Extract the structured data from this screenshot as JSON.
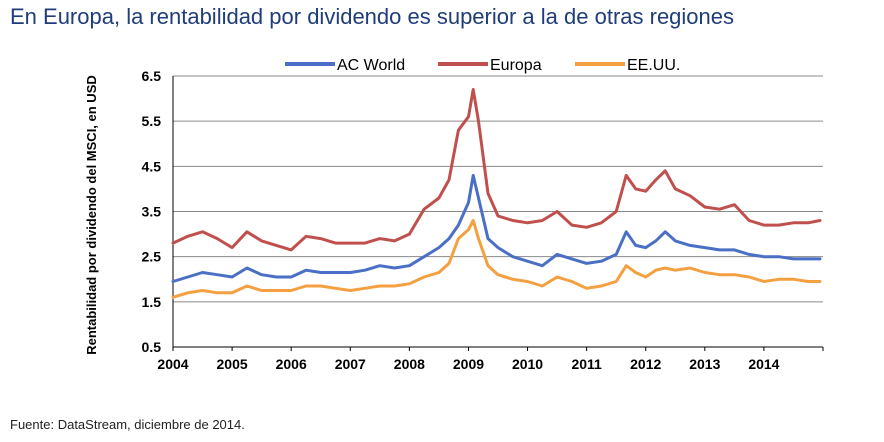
{
  "title": "En Europa, la rentabilidad por dividendo es superior a la de otras regiones",
  "source": "Fuente: DataStream, diciembre de 2014.",
  "chart_data": {
    "type": "line",
    "title": "En Europa, la rentabilidad por dividendo es superior a la de otras regiones",
    "xlabel": "",
    "ylabel": "Rentabilidad por dividendo del MSCI, en USD",
    "ylim": [
      0.5,
      6.5
    ],
    "xlim": [
      2004,
      2015
    ],
    "yticks": [
      "0.5",
      "1.5",
      "2.5",
      "3.5",
      "4.5",
      "5.5",
      "6.5"
    ],
    "xticks": [
      "2004",
      "2005",
      "2006",
      "2007",
      "2008",
      "2009",
      "2010",
      "2011",
      "2012",
      "2013",
      "2014"
    ],
    "grid": "horizontal",
    "legend": "top",
    "x": [
      2004.0,
      2004.25,
      2004.5,
      2004.75,
      2005.0,
      2005.25,
      2005.5,
      2005.75,
      2006.0,
      2006.25,
      2006.5,
      2006.75,
      2007.0,
      2007.25,
      2007.5,
      2007.75,
      2008.0,
      2008.25,
      2008.5,
      2008.67,
      2008.83,
      2009.0,
      2009.08,
      2009.17,
      2009.33,
      2009.5,
      2009.75,
      2010.0,
      2010.25,
      2010.5,
      2010.75,
      2011.0,
      2011.25,
      2011.5,
      2011.67,
      2011.83,
      2012.0,
      2012.17,
      2012.33,
      2012.5,
      2012.75,
      2013.0,
      2013.25,
      2013.5,
      2013.75,
      2014.0,
      2014.25,
      2014.5,
      2014.75,
      2014.95
    ],
    "series": [
      {
        "name": "AC World",
        "color": "#4a6fc4",
        "values": [
          1.95,
          2.05,
          2.15,
          2.1,
          2.05,
          2.25,
          2.1,
          2.05,
          2.05,
          2.2,
          2.15,
          2.15,
          2.15,
          2.2,
          2.3,
          2.25,
          2.3,
          2.5,
          2.7,
          2.9,
          3.2,
          3.7,
          4.3,
          3.8,
          2.9,
          2.7,
          2.5,
          2.4,
          2.3,
          2.55,
          2.45,
          2.35,
          2.4,
          2.55,
          3.05,
          2.75,
          2.7,
          2.85,
          3.05,
          2.85,
          2.75,
          2.7,
          2.65,
          2.65,
          2.55,
          2.5,
          2.5,
          2.45,
          2.45,
          2.45
        ]
      },
      {
        "name": "Europa",
        "color": "#c0504d",
        "values": [
          2.8,
          2.95,
          3.05,
          2.9,
          2.7,
          3.05,
          2.85,
          2.75,
          2.65,
          2.95,
          2.9,
          2.8,
          2.8,
          2.8,
          2.9,
          2.85,
          3.0,
          3.55,
          3.8,
          4.2,
          5.3,
          5.6,
          6.2,
          5.5,
          3.9,
          3.4,
          3.3,
          3.25,
          3.3,
          3.5,
          3.2,
          3.15,
          3.25,
          3.5,
          4.3,
          4.0,
          3.95,
          4.2,
          4.4,
          4.0,
          3.85,
          3.6,
          3.55,
          3.65,
          3.3,
          3.2,
          3.2,
          3.25,
          3.25,
          3.3
        ]
      },
      {
        "name": "EE.UU.",
        "color": "#f4a041",
        "values": [
          1.6,
          1.7,
          1.75,
          1.7,
          1.7,
          1.85,
          1.75,
          1.75,
          1.75,
          1.85,
          1.85,
          1.8,
          1.75,
          1.8,
          1.85,
          1.85,
          1.9,
          2.05,
          2.15,
          2.35,
          2.9,
          3.1,
          3.3,
          2.9,
          2.3,
          2.1,
          2.0,
          1.95,
          1.85,
          2.05,
          1.95,
          1.8,
          1.85,
          1.95,
          2.3,
          2.15,
          2.05,
          2.2,
          2.25,
          2.2,
          2.25,
          2.15,
          2.1,
          2.1,
          2.05,
          1.95,
          2.0,
          2.0,
          1.95,
          1.95
        ]
      }
    ]
  }
}
